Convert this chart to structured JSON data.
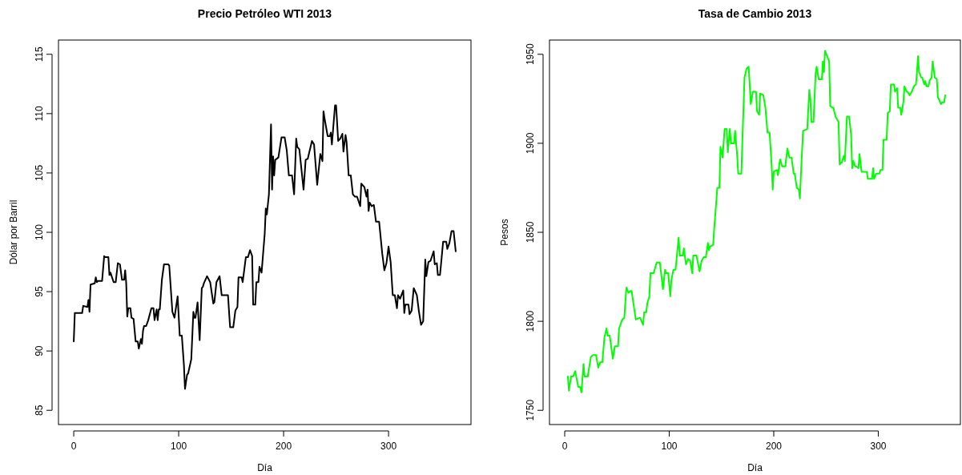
{
  "chart_data": [
    {
      "type": "line",
      "title": "Precio Petróleo WTI 2013",
      "xlabel": "Día",
      "ylabel": "Dólar por Barril",
      "xlim": [
        -14.56,
        378.56
      ],
      "ylim": [
        83.8,
        116.2
      ],
      "xticks": [
        0,
        100,
        200,
        300
      ],
      "yticks": [
        85,
        90,
        95,
        100,
        105,
        110,
        115
      ],
      "x": [
        0,
        1,
        8,
        9,
        13,
        14,
        15,
        16,
        20,
        21,
        22,
        23,
        27,
        29,
        30,
        33,
        34,
        35,
        38,
        40,
        42,
        44,
        46,
        48,
        49,
        50,
        51,
        52,
        54,
        55,
        57,
        59,
        61,
        62,
        64,
        65,
        66,
        67,
        69,
        71,
        74,
        76,
        77,
        79,
        80,
        81,
        82,
        84,
        86,
        90,
        91,
        94,
        96,
        99,
        101,
        103,
        105,
        106,
        108,
        109,
        112,
        114,
        115,
        116,
        118,
        120,
        122,
        123,
        124,
        127,
        130,
        133,
        134,
        136,
        139,
        141,
        144,
        147,
        148,
        149,
        152,
        154,
        156,
        157,
        160,
        161,
        164,
        166,
        168,
        170,
        171,
        173,
        174,
        176,
        177,
        179,
        182,
        183,
        184,
        186,
        188,
        189,
        190,
        191,
        192,
        195,
        198,
        201,
        203,
        205,
        208,
        210,
        212,
        213,
        215,
        219,
        221,
        223,
        227,
        229,
        232,
        235,
        237,
        238,
        239,
        242,
        244,
        245,
        246,
        249,
        250,
        252,
        254,
        256,
        257,
        259,
        260,
        262,
        264,
        266,
        268,
        270,
        273,
        274,
        277,
        279,
        280,
        281,
        282,
        284,
        286,
        288,
        291,
        294,
        296,
        298,
        300,
        302,
        304,
        306,
        308,
        309,
        311,
        314,
        315,
        316,
        319,
        320,
        322,
        324,
        327,
        329,
        331,
        333,
        335,
        336,
        338,
        340,
        343,
        344,
        346,
        347,
        349,
        350,
        352,
        355,
        356,
        358,
        360,
        362,
        364
      ],
      "series": [
        {
          "color": "#000000",
          "values": [
            90.8,
            93.2,
            93.2,
            93.8,
            93.7,
            94.3,
            93.3,
            95.6,
            95.7,
            96.2,
            95.8,
            95.9,
            95.9,
            98.0,
            97.9,
            97.9,
            96.4,
            96.6,
            95.8,
            95.8,
            97.4,
            97.3,
            96.0,
            96.0,
            96.8,
            95.7,
            92.9,
            93.6,
            93.6,
            92.8,
            92.7,
            90.8,
            90.8,
            90.2,
            91.0,
            90.6,
            91.7,
            92.1,
            92.1,
            92.6,
            93.6,
            93.6,
            92.6,
            93.5,
            92.6,
            93.5,
            93.5,
            96.0,
            97.3,
            97.3,
            97.2,
            93.3,
            92.8,
            94.6,
            91.3,
            91.3,
            88.8,
            86.8,
            88.0,
            88.1,
            89.3,
            93.3,
            92.8,
            92.8,
            94.1,
            90.9,
            95.3,
            95.4,
            95.7,
            96.3,
            95.8,
            94.0,
            94.1,
            95.8,
            96.3,
            94.7,
            94.7,
            94.7,
            93.3,
            92.0,
            92.0,
            93.4,
            93.7,
            96.2,
            96.2,
            95.8,
            97.9,
            97.9,
            98.5,
            98.0,
            93.9,
            93.9,
            95.8,
            95.8,
            97.1,
            96.6,
            99.9,
            102.0,
            101.5,
            103.2,
            109.1,
            103.6,
            106.4,
            104.8,
            106.1,
            106.3,
            108.0,
            108.0,
            106.9,
            104.8,
            104.8,
            103.2,
            107.9,
            107.2,
            107.0,
            103.6,
            106.1,
            106.2,
            107.7,
            107.4,
            104.0,
            106.6,
            106.0,
            110.2,
            109.6,
            108.1,
            108.1,
            108.4,
            107.4,
            110.7,
            110.7,
            107.7,
            107.9,
            108.3,
            106.8,
            108.2,
            107.6,
            104.8,
            104.8,
            103.2,
            103.0,
            103.0,
            102.2,
            104.1,
            103.8,
            103.0,
            103.6,
            101.8,
            102.5,
            102.2,
            102.3,
            100.9,
            100.9,
            98.2,
            96.8,
            97.4,
            98.8,
            97.5,
            94.7,
            94.7,
            93.6,
            94.7,
            94.4,
            95.1,
            93.2,
            93.9,
            93.9,
            93.1,
            93.4,
            95.3,
            94.7,
            93.3,
            92.2,
            92.5,
            97.7,
            96.3,
            97.5,
            97.6,
            98.4,
            97.3,
            97.4,
            96.4,
            96.4,
            97.3,
            99.2,
            99.2,
            98.6,
            99.1,
            100.1,
            100.1,
            98.4
          ]
        }
      ]
    },
    {
      "type": "line",
      "title": "Tasa de Cambio 2013",
      "xlabel": "Día",
      "ylabel": "Pesos",
      "xlim": [
        -14.56,
        378.56
      ],
      "ylim": [
        1742,
        1958
      ],
      "xticks": [
        0,
        100,
        200,
        300
      ],
      "yticks": [
        1750,
        1800,
        1850,
        1900,
        1950
      ],
      "x": [
        3,
        4,
        6,
        8,
        10,
        13,
        15,
        16,
        18,
        19,
        22,
        25,
        27,
        30,
        32,
        34,
        36,
        38,
        40,
        41,
        43,
        46,
        48,
        51,
        52,
        55,
        57,
        59,
        61,
        63,
        64,
        66,
        68,
        72,
        75,
        76,
        78,
        79,
        81,
        82,
        85,
        88,
        91,
        94,
        96,
        97,
        99,
        101,
        102,
        104,
        106,
        107,
        109,
        110,
        113,
        114,
        116,
        118,
        120,
        122,
        123,
        126,
        129,
        131,
        133,
        135,
        137,
        138,
        139,
        142,
        143,
        146,
        148,
        149,
        151,
        153,
        155,
        156,
        158,
        159,
        162,
        163,
        165,
        166,
        169,
        170,
        172,
        174,
        176,
        178,
        180,
        183,
        184,
        186,
        187,
        190,
        192,
        194,
        196,
        198,
        199,
        200,
        203,
        204,
        206,
        208,
        211,
        213,
        215,
        217,
        219,
        220,
        222,
        224,
        225,
        226,
        228,
        232,
        234,
        235,
        236,
        238,
        240,
        241,
        243,
        246,
        247,
        248,
        249,
        251,
        253,
        254,
        256,
        257,
        259,
        262,
        263,
        264,
        265,
        267,
        268,
        270,
        272,
        274,
        275,
        276,
        278,
        279,
        281,
        282,
        284,
        289,
        290,
        294,
        295,
        296,
        298,
        301,
        302,
        304,
        305,
        308,
        309,
        311,
        312,
        315,
        316,
        318,
        319,
        321,
        322,
        324,
        325,
        327,
        328,
        330,
        332,
        334,
        336,
        337,
        338,
        339,
        341,
        342,
        344,
        345,
        346,
        348,
        349,
        351,
        352,
        354,
        356,
        357,
        360,
        361,
        363,
        364
      ],
      "series": [
        {
          "color": "#00ff00",
          "values": [
            1769,
            1761,
            1769,
            1769,
            1772,
            1763,
            1763,
            1760,
            1776,
            1769,
            1769,
            1780,
            1781,
            1781,
            1774,
            1777,
            1777,
            1791,
            1796,
            1792,
            1792,
            1779,
            1786,
            1786,
            1796,
            1801,
            1802,
            1819,
            1816,
            1817,
            1817,
            1809,
            1801,
            1802,
            1798,
            1805,
            1805,
            1810,
            1814,
            1827,
            1827,
            1833,
            1833,
            1818,
            1829,
            1827,
            1827,
            1814,
            1823,
            1829,
            1829,
            1835,
            1847,
            1837,
            1837,
            1841,
            1832,
            1835,
            1834,
            1827,
            1837,
            1837,
            1828,
            1834,
            1836,
            1836,
            1844,
            1840,
            1842,
            1843,
            1852,
            1875,
            1875,
            1898,
            1892,
            1908,
            1908,
            1895,
            1908,
            1900,
            1900,
            1907,
            1893,
            1883,
            1883,
            1902,
            1937,
            1942,
            1943,
            1922,
            1929,
            1929,
            1918,
            1916,
            1928,
            1927,
            1920,
            1906,
            1906,
            1887,
            1874,
            1884,
            1885,
            1882,
            1891,
            1887,
            1887,
            1897,
            1892,
            1892,
            1883,
            1883,
            1875,
            1874,
            1869,
            1883,
            1907,
            1908,
            1930,
            1925,
            1912,
            1912,
            1939,
            1943,
            1936,
            1936,
            1946,
            1940,
            1952,
            1949,
            1946,
            1921,
            1920,
            1920,
            1915,
            1912,
            1888,
            1889,
            1889,
            1893,
            1890,
            1915,
            1915,
            1905,
            1886,
            1890,
            1887,
            1887,
            1886,
            1894,
            1884,
            1884,
            1880,
            1880,
            1886,
            1880,
            1883,
            1883,
            1885,
            1885,
            1902,
            1902,
            1917,
            1918,
            1933,
            1933,
            1929,
            1931,
            1920,
            1920,
            1916,
            1923,
            1932,
            1929,
            1929,
            1927,
            1929,
            1932,
            1933,
            1940,
            1949,
            1940,
            1937,
            1937,
            1933,
            1935,
            1932,
            1932,
            1935,
            1937,
            1946,
            1937,
            1936,
            1926,
            1922,
            1923,
            1923,
            1927
          ]
        }
      ]
    }
  ]
}
